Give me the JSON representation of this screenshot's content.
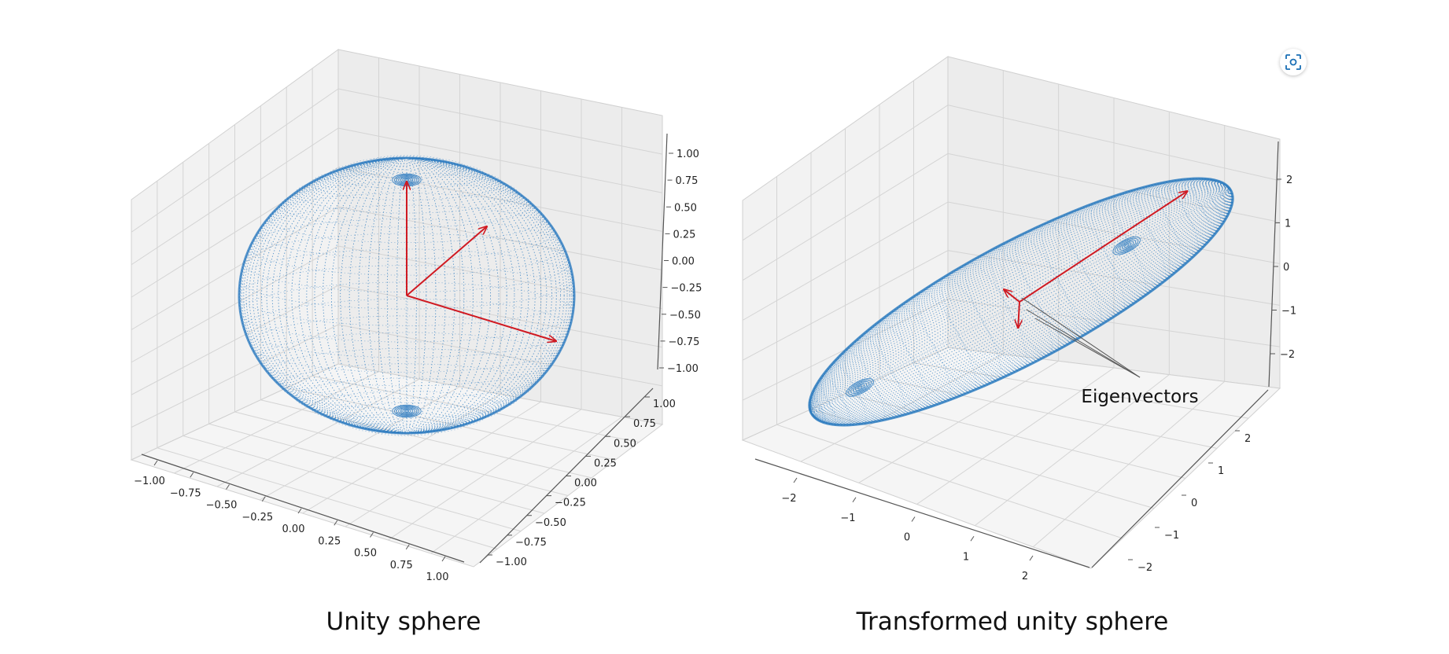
{
  "colors": {
    "surface": "#2e7cc0",
    "arrow": "#d01a22",
    "pane": "#f2f2f2",
    "grid": "#d4d4d4"
  },
  "ui": {
    "lens_icon": "visual-search-icon"
  },
  "chart_data": [
    {
      "type": "scatter",
      "subtype": "3d-surface-points",
      "caption": "Unity sphere",
      "xlim": [
        -1,
        1
      ],
      "ylim": [
        -1,
        1
      ],
      "zlim": [
        -1,
        1
      ],
      "x_ticks": [
        "−1.00",
        "−0.75",
        "−0.50",
        "−0.25",
        "0.00",
        "0.25",
        "0.50",
        "0.75",
        "1.00"
      ],
      "y_ticks": [
        "−1.00",
        "−0.75",
        "−0.50",
        "−0.25",
        "0.00",
        "0.25",
        "0.50",
        "0.75",
        "1.00"
      ],
      "z_ticks": [
        "1.00",
        "0.75",
        "0.50",
        "0.25",
        "0.00",
        "−0.25",
        "−0.50",
        "−0.75",
        "−1.00"
      ],
      "grid": true,
      "arrows": [
        {
          "from": [
            0,
            0,
            0
          ],
          "to": [
            0,
            0,
            1
          ]
        },
        {
          "from": [
            0,
            0,
            0
          ],
          "to": [
            1,
            0,
            0
          ]
        },
        {
          "from": [
            0,
            0,
            0
          ],
          "to": [
            0,
            1,
            0
          ]
        }
      ]
    },
    {
      "type": "scatter",
      "subtype": "3d-surface-points",
      "caption": "Transformed unity sphere",
      "annotation": "Eigenvectors",
      "xlim": [
        -2.5,
        2.5
      ],
      "ylim": [
        -2.5,
        2.5
      ],
      "zlim": [
        -2.5,
        2.5
      ],
      "x_ticks": [
        "−2",
        "−1",
        "0",
        "1",
        "2"
      ],
      "y_ticks": [
        "2",
        "1",
        "0",
        "−1",
        "−2"
      ],
      "z_ticks": [
        "2",
        "1",
        "0",
        "−1",
        "−2"
      ],
      "grid": true,
      "arrows": [
        {
          "from": [
            0,
            0,
            0
          ],
          "to": [
            2.2,
            2.2,
            2.2
          ]
        },
        {
          "from": [
            0,
            0,
            0
          ],
          "to": [
            -0.4,
            -0.4,
            0.5
          ]
        },
        {
          "from": [
            0,
            0,
            0
          ],
          "to": [
            0.3,
            -0.2,
            -0.6
          ]
        }
      ]
    }
  ]
}
